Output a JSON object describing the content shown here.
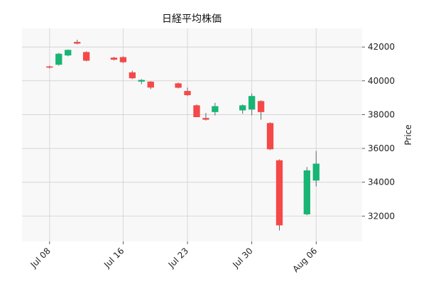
{
  "chart_data": {
    "type": "candlestick",
    "title": "日経平均株価",
    "xlabel": "",
    "ylabel": "Price",
    "y_side": "right",
    "ylim": [
      30500,
      43100
    ],
    "y_ticks": [
      32000,
      34000,
      36000,
      38000,
      40000,
      42000
    ],
    "y_tick_labels": [
      "32000",
      "34000",
      "36000",
      "38000",
      "40000",
      "42000"
    ],
    "x_range": [
      "2024-07-05",
      "2024-08-11"
    ],
    "x_ticks": [
      "2024-07-08",
      "2024-07-16",
      "2024-07-23",
      "2024-07-30",
      "2024-08-06"
    ],
    "x_tick_labels": [
      "Jul 08",
      "Jul 16",
      "Jul 23",
      "Jul 30",
      "Aug 06"
    ],
    "grid": true,
    "colors": {
      "up": "#18b574",
      "down": "#f64848",
      "background": "#f8f8f8",
      "grid": "#d0d0d0"
    },
    "candles": [
      {
        "date": "2024-07-08",
        "open": 40850,
        "high": 40900,
        "low": 40720,
        "close": 40780
      },
      {
        "date": "2024-07-09",
        "open": 40950,
        "high": 41650,
        "low": 40900,
        "close": 41600
      },
      {
        "date": "2024-07-10",
        "open": 41500,
        "high": 41850,
        "low": 41450,
        "close": 41830
      },
      {
        "date": "2024-07-11",
        "open": 42300,
        "high": 42430,
        "low": 42150,
        "close": 42200
      },
      {
        "date": "2024-07-12",
        "open": 41700,
        "high": 41750,
        "low": 41150,
        "close": 41190
      },
      {
        "date": "2024-07-15",
        "open": 41370,
        "high": 41420,
        "low": 41200,
        "close": 41250
      },
      {
        "date": "2024-07-16",
        "open": 41400,
        "high": 41450,
        "low": 41050,
        "close": 41100
      },
      {
        "date": "2024-07-17",
        "open": 40500,
        "high": 40600,
        "low": 40100,
        "close": 40150
      },
      {
        "date": "2024-07-18",
        "open": 39950,
        "high": 40100,
        "low": 39800,
        "close": 40050
      },
      {
        "date": "2024-07-19",
        "open": 39950,
        "high": 39980,
        "low": 39500,
        "close": 39600
      },
      {
        "date": "2024-07-22",
        "open": 39850,
        "high": 39900,
        "low": 39550,
        "close": 39590
      },
      {
        "date": "2024-07-23",
        "open": 39400,
        "high": 39600,
        "low": 39100,
        "close": 39150
      },
      {
        "date": "2024-07-24",
        "open": 38550,
        "high": 38600,
        "low": 37850,
        "close": 37850
      },
      {
        "date": "2024-07-25",
        "open": 37800,
        "high": 38100,
        "low": 37650,
        "close": 37700
      },
      {
        "date": "2024-07-26",
        "open": 38150,
        "high": 38700,
        "low": 37950,
        "close": 38500
      },
      {
        "date": "2024-07-29",
        "open": 38250,
        "high": 38600,
        "low": 38050,
        "close": 38550
      },
      {
        "date": "2024-07-30",
        "open": 38300,
        "high": 39250,
        "low": 37950,
        "close": 39100
      },
      {
        "date": "2024-07-31",
        "open": 38800,
        "high": 38850,
        "low": 37700,
        "close": 38150
      },
      {
        "date": "2024-08-01",
        "open": 37500,
        "high": 37550,
        "low": 35900,
        "close": 35950
      },
      {
        "date": "2024-08-02",
        "open": 35300,
        "high": 35350,
        "low": 31150,
        "close": 31450
      },
      {
        "date": "2024-08-05",
        "open": 32100,
        "high": 34900,
        "low": 32050,
        "close": 34700
      },
      {
        "date": "2024-08-06",
        "open": 34100,
        "high": 35850,
        "low": 33750,
        "close": 35100
      }
    ]
  }
}
